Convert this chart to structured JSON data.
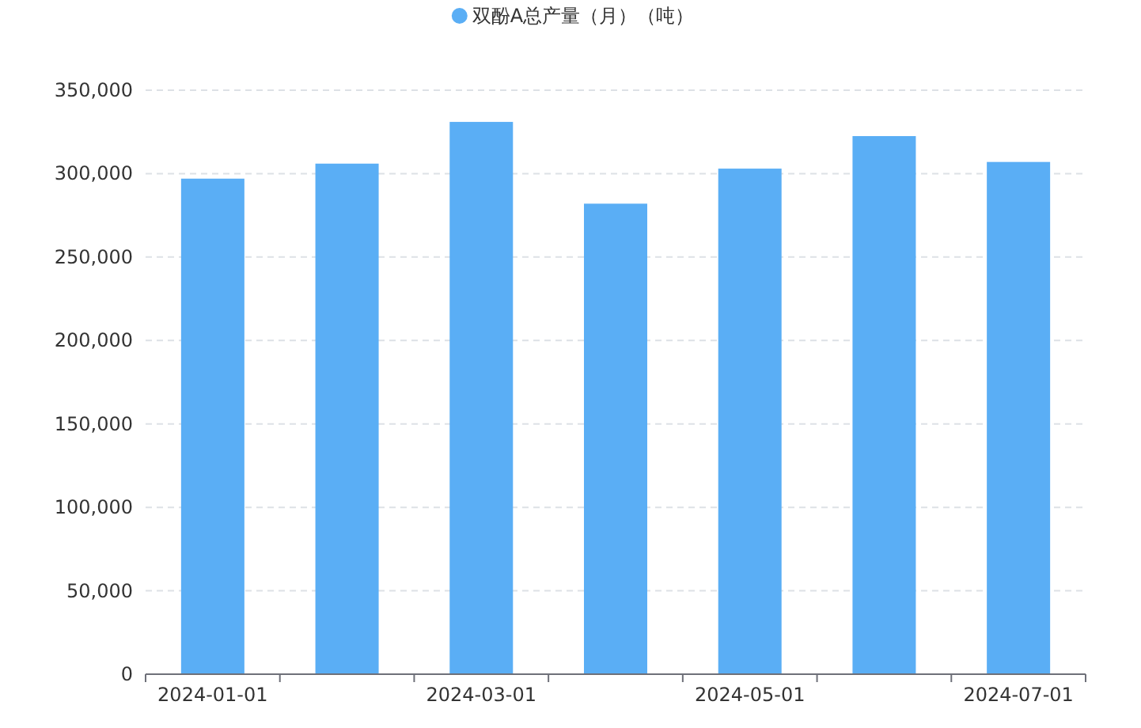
{
  "chart_data": {
    "type": "bar",
    "categories": [
      "2024-01-01",
      null,
      "2024-03-01",
      null,
      "2024-05-01",
      null,
      "2024-07-01"
    ],
    "series": [
      {
        "name": "双酚A总产量（月）（吨）",
        "color": "#5aaef5",
        "values": [
          297000,
          306000,
          331000,
          282000,
          303000,
          322500,
          307000
        ]
      }
    ],
    "ylim": [
      0,
      350000
    ],
    "yticks": [
      0,
      {
        "value": 50000,
        "label": "50,000"
      },
      {
        "value": 100000,
        "label": "100,000"
      },
      {
        "value": 150000,
        "label": "150,000"
      },
      {
        "value": 200000,
        "label": "200,000"
      },
      {
        "value": 250000,
        "label": "250,000"
      },
      {
        "value": 300000,
        "label": "300,000"
      },
      {
        "value": 350000,
        "label": "350,000"
      }
    ],
    "grid": "y",
    "legend": "top"
  }
}
